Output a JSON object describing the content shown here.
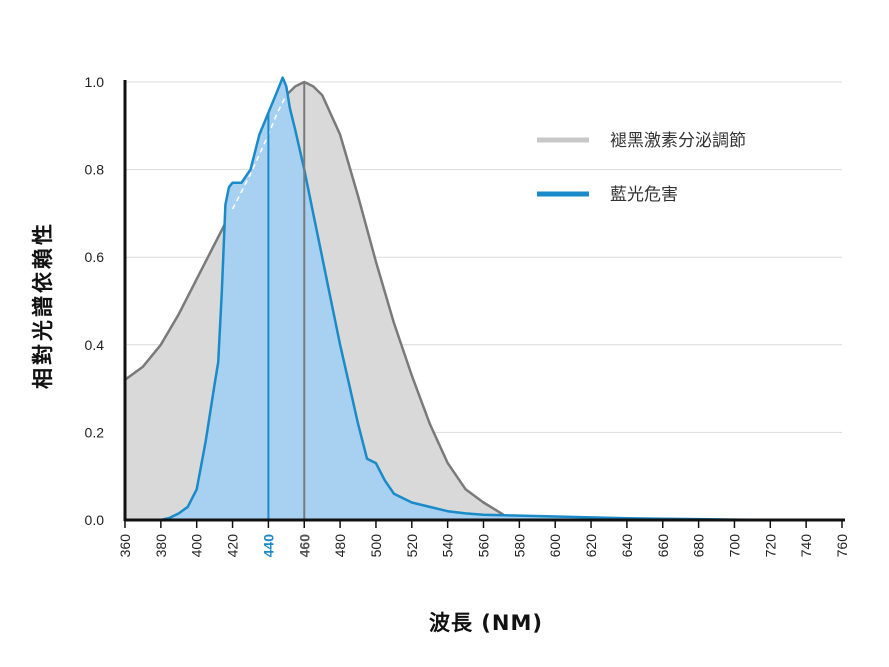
{
  "chart_data": {
    "type": "area",
    "title": "",
    "xlabel": "波長 (NM)",
    "ylabel": "相對光譜依賴性",
    "xlim": [
      360,
      760
    ],
    "ylim": [
      0,
      1.0
    ],
    "x_ticks": [
      "360",
      "380",
      "400",
      "420",
      "440",
      "460",
      "480",
      "500",
      "520",
      "540",
      "560",
      "580",
      "600",
      "620",
      "640",
      "660",
      "680",
      "700",
      "720",
      "740",
      "760"
    ],
    "y_ticks": [
      "0.0",
      "0.2",
      "0.4",
      "0.6",
      "0.8",
      "1.0"
    ],
    "grid": true,
    "legend_position": "top-right",
    "highlight_lines": [
      {
        "x": 440,
        "series": "藍光危害"
      },
      {
        "x": 460,
        "series": "褪黑激素分泌調節"
      }
    ],
    "series": [
      {
        "name": "褪黑激素分泌調節",
        "color": "#7a7a7a",
        "fill": "#d9d9d9",
        "x": [
          360,
          370,
          380,
          390,
          400,
          410,
          420,
          430,
          440,
          445,
          450,
          455,
          460,
          465,
          470,
          480,
          490,
          500,
          510,
          520,
          530,
          540,
          550,
          560,
          570,
          575
        ],
        "y": [
          0.32,
          0.35,
          0.4,
          0.47,
          0.55,
          0.63,
          0.71,
          0.79,
          0.88,
          0.93,
          0.97,
          0.99,
          1.0,
          0.99,
          0.97,
          0.88,
          0.74,
          0.59,
          0.45,
          0.33,
          0.22,
          0.13,
          0.07,
          0.04,
          0.015,
          0.0
        ]
      },
      {
        "name": "藍光危害",
        "color": "#1a8ac8",
        "fill": "#a8d0f0",
        "x": [
          380,
          385,
          390,
          395,
          400,
          405,
          410,
          412,
          414,
          416,
          418,
          420,
          425,
          430,
          435,
          440,
          445,
          448,
          450,
          452,
          455,
          460,
          465,
          470,
          475,
          480,
          485,
          490,
          495,
          500,
          505,
          510,
          520,
          530,
          540,
          550,
          560,
          580,
          600,
          620,
          640,
          660,
          680,
          700,
          720
        ],
        "y": [
          0.0,
          0.005,
          0.015,
          0.03,
          0.07,
          0.18,
          0.31,
          0.36,
          0.52,
          0.72,
          0.76,
          0.77,
          0.77,
          0.8,
          0.88,
          0.93,
          0.98,
          1.01,
          0.99,
          0.94,
          0.89,
          0.8,
          0.7,
          0.6,
          0.5,
          0.4,
          0.31,
          0.22,
          0.14,
          0.13,
          0.09,
          0.06,
          0.04,
          0.03,
          0.02,
          0.015,
          0.012,
          0.01,
          0.008,
          0.006,
          0.004,
          0.003,
          0.002,
          0.001,
          0.0
        ]
      }
    ]
  }
}
